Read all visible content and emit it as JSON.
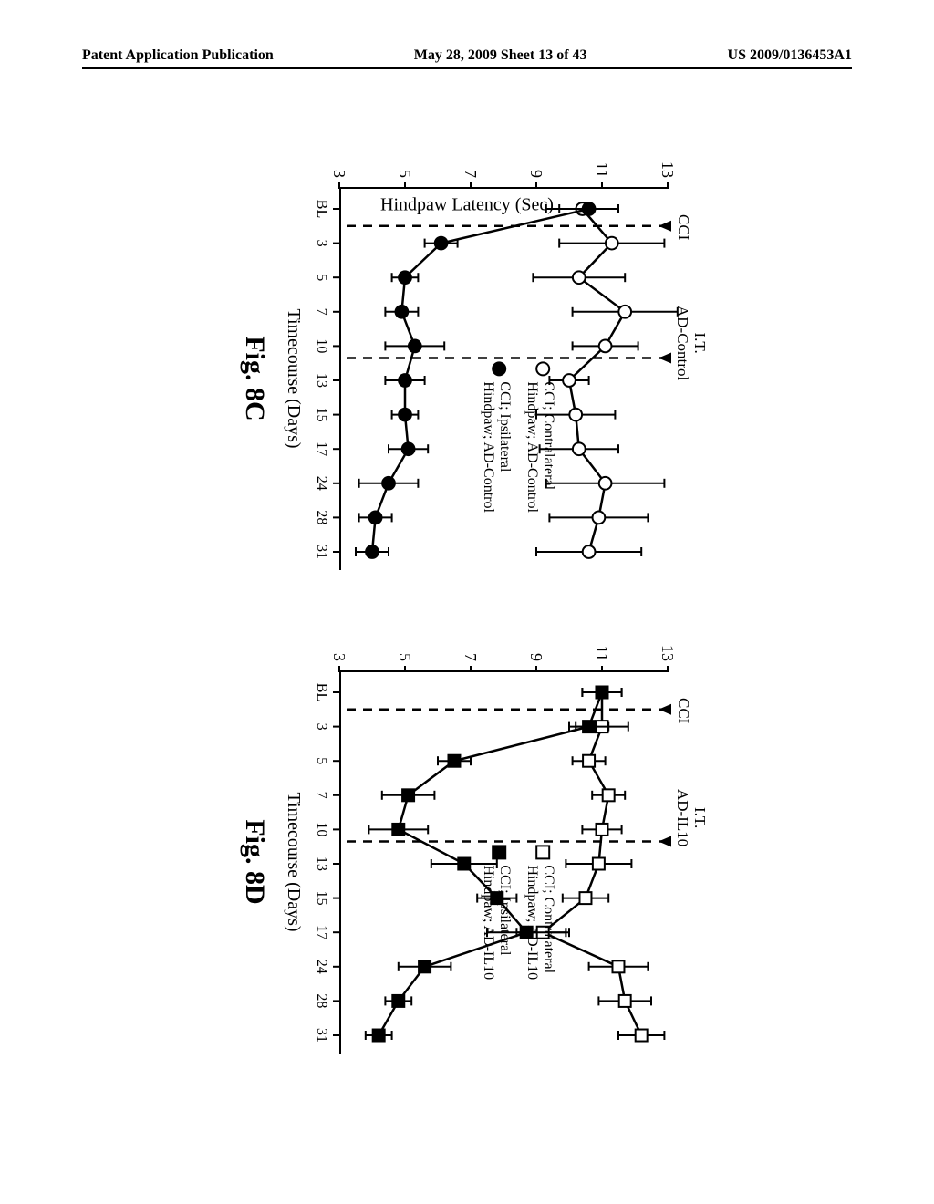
{
  "header": {
    "left": "Patent Application Publication",
    "center": "May 28, 2009  Sheet 13 of 43",
    "right": "US 2009/0136453A1"
  },
  "shared": {
    "ylabel": "Hindpaw Latency (Sec)",
    "xlabel": "Timecourse (Days)",
    "ylim": [
      3,
      13
    ],
    "yticks": [
      3,
      5,
      7,
      9,
      11,
      13
    ],
    "xticks": [
      "BL",
      "3",
      "5",
      "7",
      "10",
      "13",
      "15",
      "17",
      "24",
      "28",
      "31"
    ],
    "xtick_idx": {
      "BL": 0,
      "3": 1,
      "5": 2,
      "7": 3,
      "10": 4,
      "13": 5,
      "15": 6,
      "17": 7,
      "24": 8,
      "28": 9,
      "31": 10
    },
    "events": [
      {
        "label": "CCI",
        "x_after_idx": 0
      },
      {
        "label_varies": true
      }
    ],
    "line_color": "#000000",
    "marker_stroke": "#000000",
    "marker_size": 11,
    "error_cap": 10,
    "font_family": "Times New Roman"
  },
  "chart_c": {
    "caption": "Fig. 8C",
    "top_label_2": "I.T.\nAD-Control",
    "top_label_1": "CCI",
    "legend": [
      {
        "shape": "circle",
        "fill": "#ffffff",
        "text": "CCI; Contralateral\nHindpaw; AD-Control"
      },
      {
        "shape": "circle",
        "fill": "#000000",
        "text": "CCI; Ipsilateral\nHindpaw; AD-Control"
      }
    ],
    "event2_after_idx": 4,
    "series": [
      {
        "name": "contralateral",
        "marker": "circle",
        "fill": "#ffffff",
        "x_idx": [
          0,
          1,
          2,
          3,
          4,
          5,
          6,
          7,
          8,
          9,
          10
        ],
        "y": [
          10.4,
          11.3,
          10.3,
          11.7,
          11.1,
          10.0,
          10.2,
          10.3,
          11.1,
          10.9,
          10.6
        ],
        "err": [
          1.1,
          1.6,
          1.4,
          1.6,
          1.0,
          0.6,
          1.2,
          1.2,
          1.8,
          1.5,
          1.6
        ]
      },
      {
        "name": "ipsilateral",
        "marker": "circle",
        "fill": "#000000",
        "x_idx": [
          0,
          1,
          2,
          3,
          4,
          5,
          6,
          7,
          8,
          9,
          10
        ],
        "y": [
          10.6,
          6.1,
          5.0,
          4.9,
          5.3,
          5.0,
          5.0,
          5.1,
          4.5,
          4.1,
          4.0
        ],
        "err": [
          0.9,
          0.5,
          0.4,
          0.5,
          0.9,
          0.6,
          0.4,
          0.6,
          0.9,
          0.5,
          0.5
        ]
      }
    ]
  },
  "chart_d": {
    "caption": "Fig. 8D",
    "top_label_2": "I.T.\nAD-IL10",
    "top_label_1": "CCI",
    "legend": [
      {
        "shape": "square",
        "fill": "#ffffff",
        "text": "CCI; Contralateral\nHindpaw; AD-IL10"
      },
      {
        "shape": "square",
        "fill": "#000000",
        "text": "CCI; Ipsilateral\nHindpaw; AD-IL10"
      }
    ],
    "event2_after_idx": 4,
    "series": [
      {
        "name": "contralateral",
        "marker": "square",
        "fill": "#ffffff",
        "x_idx": [
          0,
          1,
          2,
          3,
          4,
          5,
          6,
          7,
          8,
          9,
          10
        ],
        "y": [
          11.0,
          11.0,
          10.6,
          11.2,
          11.0,
          10.9,
          10.5,
          9.2,
          11.5,
          11.7,
          12.2
        ],
        "err": [
          0.6,
          0.8,
          0.5,
          0.5,
          0.6,
          1.0,
          0.7,
          0.8,
          0.9,
          0.8,
          0.7
        ]
      },
      {
        "name": "ipsilateral",
        "marker": "square",
        "fill": "#000000",
        "x_idx": [
          0,
          1,
          2,
          3,
          4,
          5,
          6,
          7,
          8,
          9,
          10
        ],
        "y": [
          11.0,
          10.6,
          6.5,
          5.1,
          4.8,
          6.8,
          7.8,
          8.7,
          5.6,
          4.8,
          4.2
        ],
        "err": [
          0.6,
          0.6,
          0.5,
          0.8,
          0.9,
          1.0,
          0.6,
          1.2,
          0.8,
          0.4,
          0.4
        ]
      }
    ]
  }
}
